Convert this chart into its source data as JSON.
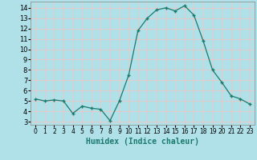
{
  "x": [
    0,
    1,
    2,
    3,
    4,
    5,
    6,
    7,
    8,
    9,
    10,
    11,
    12,
    13,
    14,
    15,
    16,
    17,
    18,
    19,
    20,
    21,
    22,
    23
  ],
  "y": [
    5.2,
    5.0,
    5.1,
    5.0,
    3.8,
    4.5,
    4.3,
    4.2,
    3.1,
    5.0,
    7.5,
    11.8,
    13.0,
    13.8,
    14.0,
    13.7,
    14.2,
    13.3,
    10.8,
    8.0,
    6.8,
    5.5,
    5.2,
    4.7
  ],
  "line_color": "#1a7a6e",
  "marker": "+",
  "marker_size": 3,
  "bg_color": "#b0e0e8",
  "grid_color": "#e8c8c8",
  "xlabel": "Humidex (Indice chaleur)",
  "xlim": [
    -0.5,
    23.5
  ],
  "ylim": [
    2.7,
    14.6
  ],
  "yticks": [
    3,
    4,
    5,
    6,
    7,
    8,
    9,
    10,
    11,
    12,
    13,
    14
  ],
  "xticks": [
    0,
    1,
    2,
    3,
    4,
    5,
    6,
    7,
    8,
    9,
    10,
    11,
    12,
    13,
    14,
    15,
    16,
    17,
    18,
    19,
    20,
    21,
    22,
    23
  ],
  "xlabel_fontsize": 7,
  "ytick_fontsize": 6,
  "xtick_fontsize": 5.5
}
